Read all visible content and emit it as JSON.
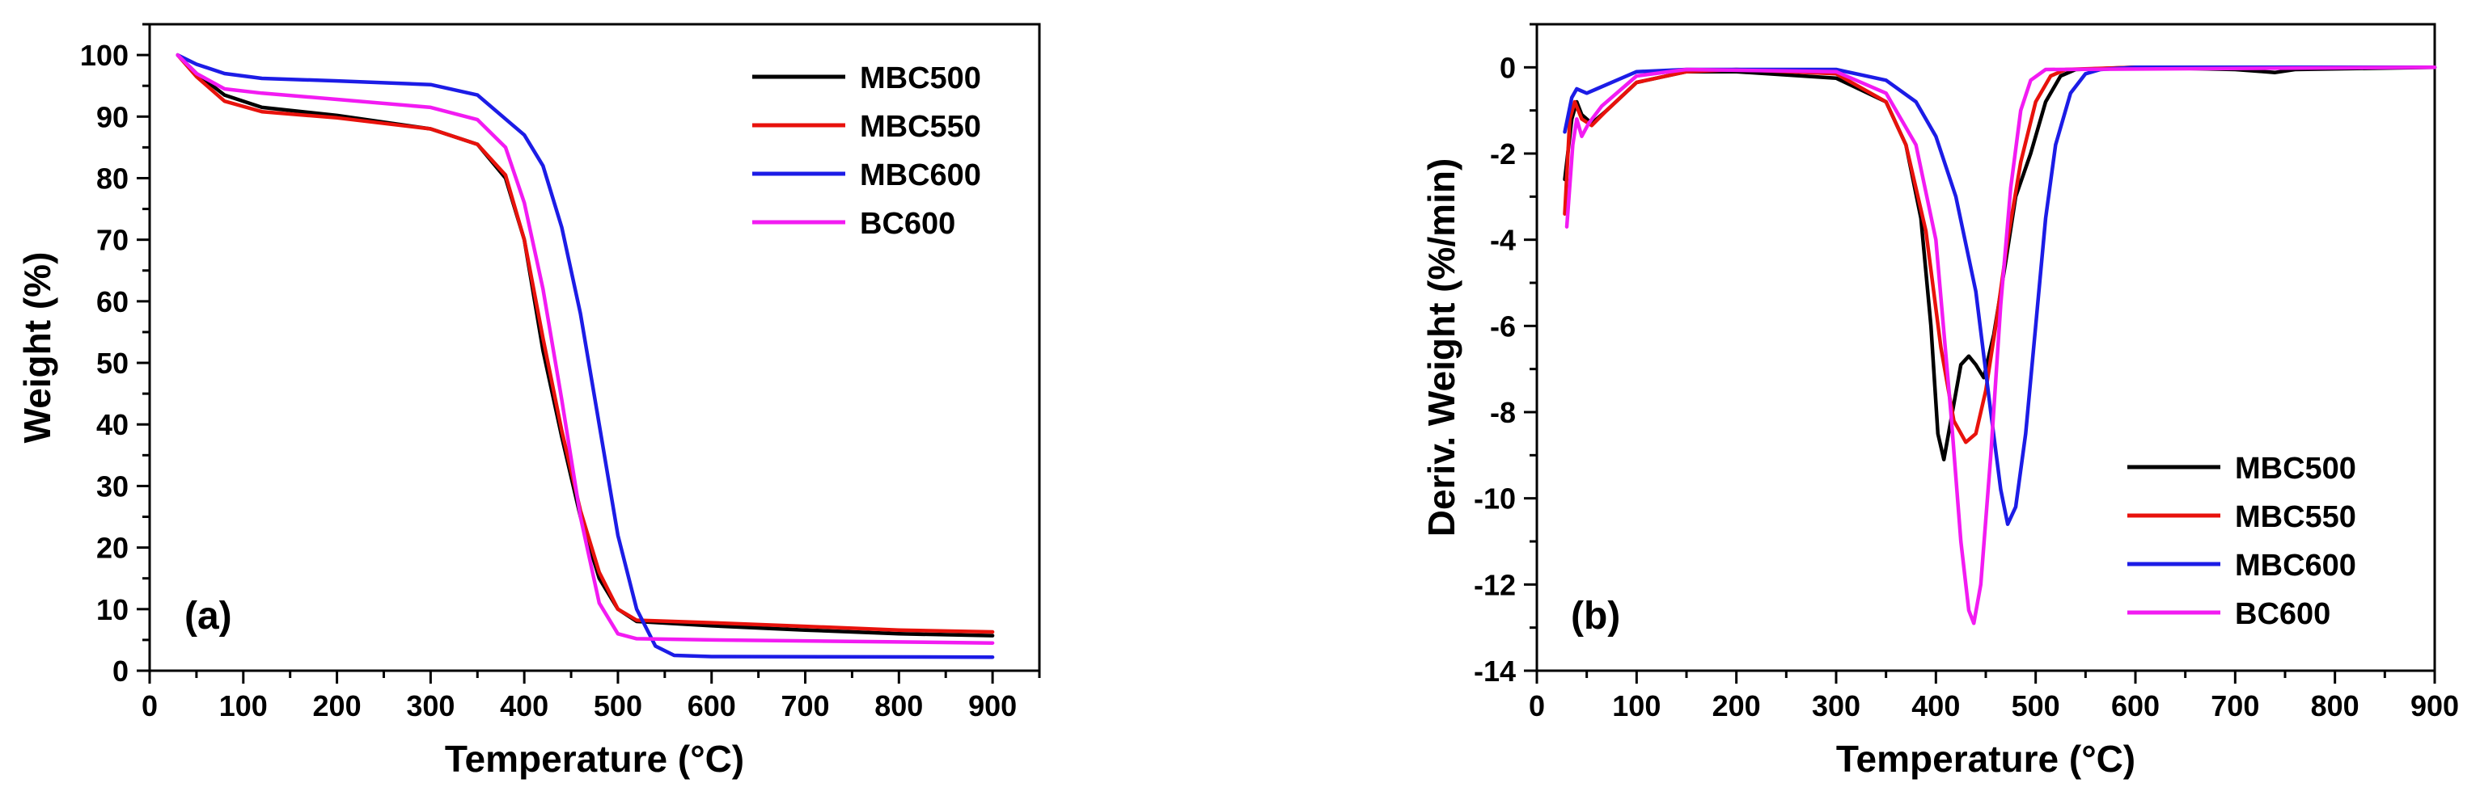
{
  "figure": {
    "colors": {
      "MBC500": "#000000",
      "MBC550": "#e8120c",
      "MBC600": "#1c1ce6",
      "BC600": "#f21bf2"
    }
  },
  "chart_data": [
    {
      "type": "line",
      "panel_label": "(a)",
      "xlabel": "Temperature (°C)",
      "ylabel": "Weight (%)",
      "xlim": [
        0,
        950
      ],
      "ylim": [
        0,
        105
      ],
      "x_ticks": [
        0,
        100,
        200,
        300,
        400,
        500,
        600,
        700,
        800,
        900
      ],
      "x_tick_labels": [
        "0",
        "100",
        "200",
        "300",
        "400",
        "500",
        "600",
        "700",
        "800",
        "900"
      ],
      "y_ticks": [
        0,
        10,
        20,
        30,
        40,
        50,
        60,
        70,
        80,
        90,
        100
      ],
      "y_tick_labels": [
        "0",
        "10",
        "20",
        "30",
        "40",
        "50",
        "60",
        "70",
        "80",
        "90",
        "100"
      ],
      "legend_position": "top-right",
      "series": [
        {
          "name": "MBC500",
          "color": "#000000",
          "points": [
            [
              30,
              100
            ],
            [
              50,
              97
            ],
            [
              80,
              93.5
            ],
            [
              120,
              91.5
            ],
            [
              200,
              90.2
            ],
            [
              300,
              88
            ],
            [
              350,
              85.5
            ],
            [
              380,
              80
            ],
            [
              400,
              70
            ],
            [
              420,
              52
            ],
            [
              440,
              38
            ],
            [
              460,
              25
            ],
            [
              480,
              15
            ],
            [
              500,
              10
            ],
            [
              520,
              8
            ],
            [
              600,
              7.3
            ],
            [
              700,
              6.6
            ],
            [
              800,
              6
            ],
            [
              900,
              5.7
            ]
          ]
        },
        {
          "name": "MBC550",
          "color": "#e8120c",
          "points": [
            [
              30,
              100
            ],
            [
              50,
              96.5
            ],
            [
              80,
              92.5
            ],
            [
              120,
              90.8
            ],
            [
              200,
              89.8
            ],
            [
              300,
              88
            ],
            [
              350,
              85.5
            ],
            [
              380,
              80.5
            ],
            [
              400,
              70
            ],
            [
              420,
              54
            ],
            [
              440,
              39
            ],
            [
              460,
              26
            ],
            [
              480,
              16
            ],
            [
              500,
              10
            ],
            [
              520,
              8.2
            ],
            [
              600,
              7.8
            ],
            [
              700,
              7.2
            ],
            [
              800,
              6.6
            ],
            [
              900,
              6.3
            ]
          ]
        },
        {
          "name": "MBC600",
          "color": "#1c1ce6",
          "points": [
            [
              30,
              100
            ],
            [
              50,
              98.5
            ],
            [
              80,
              97
            ],
            [
              120,
              96.2
            ],
            [
              200,
              95.8
            ],
            [
              300,
              95.2
            ],
            [
              350,
              93.5
            ],
            [
              400,
              87
            ],
            [
              420,
              82
            ],
            [
              440,
              72
            ],
            [
              460,
              58
            ],
            [
              480,
              40
            ],
            [
              500,
              22
            ],
            [
              520,
              10
            ],
            [
              540,
              4
            ],
            [
              560,
              2.5
            ],
            [
              600,
              2.3
            ],
            [
              900,
              2.2
            ]
          ]
        },
        {
          "name": "BC600",
          "color": "#f21bf2",
          "points": [
            [
              30,
              100
            ],
            [
              50,
              97
            ],
            [
              80,
              94.5
            ],
            [
              120,
              93.8
            ],
            [
              200,
              92.8
            ],
            [
              300,
              91.5
            ],
            [
              350,
              89.5
            ],
            [
              380,
              85
            ],
            [
              400,
              76
            ],
            [
              420,
              62
            ],
            [
              440,
              44
            ],
            [
              460,
              25
            ],
            [
              480,
              11
            ],
            [
              500,
              6
            ],
            [
              520,
              5.2
            ],
            [
              600,
              5
            ],
            [
              900,
              4.5
            ]
          ]
        }
      ]
    },
    {
      "type": "line",
      "panel_label": "(b)",
      "xlabel": "Temperature (°C)",
      "ylabel": "Deriv. Weight (%/min)",
      "xlim": [
        0,
        900
      ],
      "ylim": [
        -14,
        1
      ],
      "x_ticks": [
        0,
        100,
        200,
        300,
        400,
        500,
        600,
        700,
        800,
        900
      ],
      "x_tick_labels": [
        "0",
        "100",
        "200",
        "300",
        "400",
        "500",
        "600",
        "700",
        "800",
        "900"
      ],
      "y_ticks": [
        -14,
        -12,
        -10,
        -8,
        -6,
        -4,
        -2,
        0
      ],
      "y_tick_labels": [
        "-14",
        "-12",
        "-10",
        "-8",
        "-6",
        "-4",
        "-2",
        "0"
      ],
      "legend_position": "bottom-right",
      "series": [
        {
          "name": "MBC500",
          "color": "#000000",
          "points": [
            [
              28,
              -2.6
            ],
            [
              35,
              -1.2
            ],
            [
              40,
              -0.8
            ],
            [
              45,
              -1.1
            ],
            [
              55,
              -1.3
            ],
            [
              70,
              -1
            ],
            [
              100,
              -0.35
            ],
            [
              150,
              -0.1
            ],
            [
              200,
              -0.1
            ],
            [
              300,
              -0.25
            ],
            [
              350,
              -0.8
            ],
            [
              370,
              -1.8
            ],
            [
              385,
              -3.5
            ],
            [
              395,
              -6
            ],
            [
              402,
              -8.5
            ],
            [
              408,
              -9.1
            ],
            [
              415,
              -8.2
            ],
            [
              425,
              -6.9
            ],
            [
              433,
              -6.7
            ],
            [
              440,
              -6.9
            ],
            [
              448,
              -7.2
            ],
            [
              458,
              -6.2
            ],
            [
              470,
              -4.5
            ],
            [
              480,
              -3
            ],
            [
              495,
              -2
            ],
            [
              510,
              -0.8
            ],
            [
              525,
              -0.2
            ],
            [
              540,
              -0.05
            ],
            [
              600,
              0
            ],
            [
              700,
              -0.05
            ],
            [
              740,
              -0.12
            ],
            [
              760,
              -0.05
            ],
            [
              900,
              0
            ]
          ]
        },
        {
          "name": "MBC550",
          "color": "#e8120c",
          "points": [
            [
              28,
              -3.4
            ],
            [
              33,
              -1.2
            ],
            [
              38,
              -0.8
            ],
            [
              45,
              -1.2
            ],
            [
              55,
              -1.35
            ],
            [
              70,
              -1
            ],
            [
              100,
              -0.35
            ],
            [
              150,
              -0.1
            ],
            [
              200,
              -0.05
            ],
            [
              300,
              -0.15
            ],
            [
              350,
              -0.8
            ],
            [
              370,
              -1.8
            ],
            [
              390,
              -3.8
            ],
            [
              405,
              -6.5
            ],
            [
              418,
              -8.2
            ],
            [
              430,
              -8.7
            ],
            [
              440,
              -8.5
            ],
            [
              450,
              -7.5
            ],
            [
              460,
              -6
            ],
            [
              472,
              -4
            ],
            [
              485,
              -2.2
            ],
            [
              500,
              -0.8
            ],
            [
              515,
              -0.2
            ],
            [
              530,
              -0.05
            ],
            [
              600,
              0
            ],
            [
              900,
              0
            ]
          ]
        },
        {
          "name": "MBC600",
          "color": "#1c1ce6",
          "points": [
            [
              28,
              -1.5
            ],
            [
              35,
              -0.7
            ],
            [
              40,
              -0.5
            ],
            [
              50,
              -0.6
            ],
            [
              60,
              -0.5
            ],
            [
              80,
              -0.3
            ],
            [
              100,
              -0.1
            ],
            [
              150,
              -0.05
            ],
            [
              200,
              -0.05
            ],
            [
              300,
              -0.05
            ],
            [
              350,
              -0.3
            ],
            [
              380,
              -0.8
            ],
            [
              400,
              -1.6
            ],
            [
              420,
              -3
            ],
            [
              440,
              -5.2
            ],
            [
              455,
              -8
            ],
            [
              465,
              -9.8
            ],
            [
              472,
              -10.6
            ],
            [
              480,
              -10.2
            ],
            [
              490,
              -8.5
            ],
            [
              500,
              -6
            ],
            [
              510,
              -3.5
            ],
            [
              520,
              -1.8
            ],
            [
              535,
              -0.6
            ],
            [
              550,
              -0.15
            ],
            [
              565,
              -0.05
            ],
            [
              600,
              0
            ],
            [
              900,
              0
            ]
          ]
        },
        {
          "name": "BC600",
          "color": "#f21bf2",
          "points": [
            [
              30,
              -3.7
            ],
            [
              36,
              -1.8
            ],
            [
              40,
              -1.2
            ],
            [
              45,
              -1.6
            ],
            [
              52,
              -1.3
            ],
            [
              65,
              -0.9
            ],
            [
              100,
              -0.2
            ],
            [
              150,
              -0.05
            ],
            [
              300,
              -0.1
            ],
            [
              350,
              -0.6
            ],
            [
              380,
              -1.8
            ],
            [
              400,
              -4
            ],
            [
              415,
              -8
            ],
            [
              425,
              -11
            ],
            [
              433,
              -12.6
            ],
            [
              438,
              -12.9
            ],
            [
              445,
              -12
            ],
            [
              455,
              -9
            ],
            [
              465,
              -5.5
            ],
            [
              475,
              -2.8
            ],
            [
              485,
              -1
            ],
            [
              495,
              -0.3
            ],
            [
              510,
              -0.05
            ],
            [
              900,
              0
            ]
          ]
        }
      ]
    }
  ]
}
